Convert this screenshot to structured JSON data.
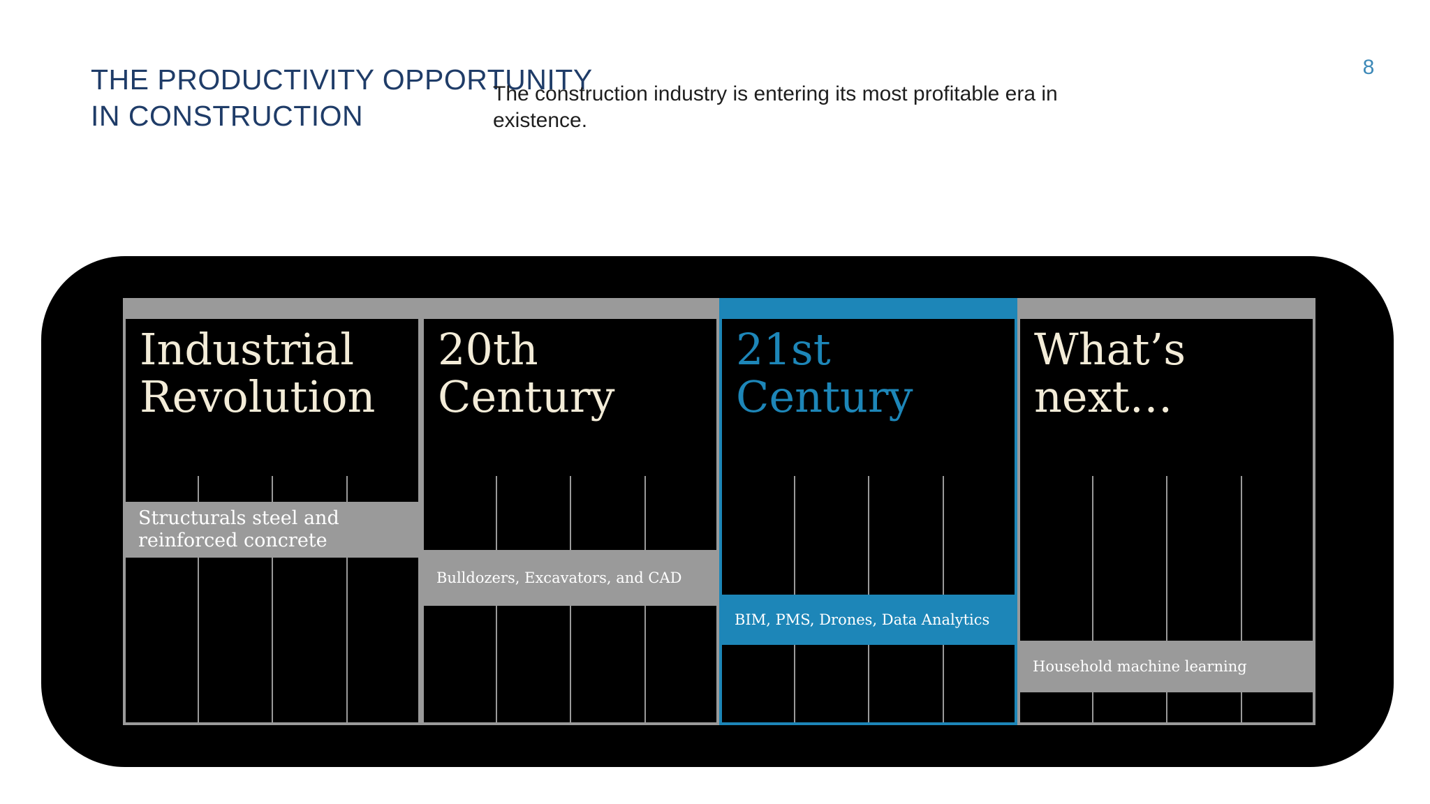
{
  "slide": {
    "title": "THE PRODUCTIVITY OPPORTUNITY IN CONSTRUCTION",
    "subtitle": "The construction industry is entering its most profitable era in existence.",
    "page_number": "8"
  },
  "timeline": {
    "highlight_color": "#1d86b8",
    "neutral_color": "#9a9a9a",
    "background_color": "#000000",
    "eras": [
      {
        "title": "Industrial Revolution",
        "technology": "Structurals steel and reinforced concrete",
        "highlighted": false
      },
      {
        "title": "20th Century",
        "technology": "Bulldozers, Excavators, and CAD",
        "highlighted": false
      },
      {
        "title": "21st Century",
        "technology": "BIM, PMS, Drones, Data Analytics",
        "highlighted": true
      },
      {
        "title": "What’s next…",
        "technology": "Household machine learning",
        "highlighted": false
      }
    ]
  }
}
